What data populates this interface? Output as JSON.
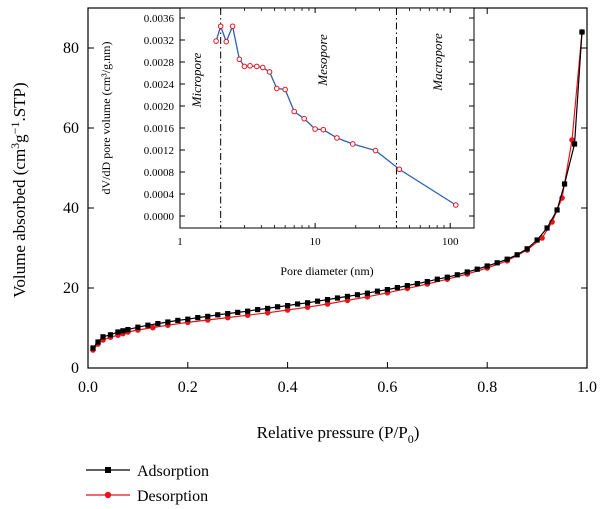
{
  "chart_data": [
    {
      "type": "line",
      "id": "isotherm",
      "xlabel": "Relative pressure (P/P",
      "xlabel_sub": "0",
      "xlabel_tail": ")",
      "ylabel": "Volume absorbed (cm",
      "ylabel_sup1": "3",
      "ylabel_mid": "g",
      "ylabel_sup2": "−1",
      "ylabel_tail": ".STP)",
      "xlim": [
        0,
        1.0
      ],
      "ylim": [
        0,
        90
      ],
      "xticks": [
        0.0,
        0.2,
        0.4,
        0.6,
        0.8,
        1.0
      ],
      "xtick_labels": [
        "0.0",
        "0.2",
        "0.4",
        "0.6",
        "0.8",
        "1.0"
      ],
      "yticks": [
        0,
        20,
        40,
        60,
        80
      ],
      "ytick_labels": [
        "0",
        "20",
        "40",
        "60",
        "80"
      ],
      "legend_position": "below-left",
      "series": [
        {
          "name": "Adsorption",
          "color": "#000000",
          "marker": "square",
          "x": [
            0.01,
            0.02,
            0.03,
            0.045,
            0.06,
            0.07,
            0.08,
            0.1,
            0.12,
            0.14,
            0.16,
            0.18,
            0.2,
            0.22,
            0.24,
            0.26,
            0.28,
            0.3,
            0.32,
            0.34,
            0.36,
            0.38,
            0.4,
            0.42,
            0.44,
            0.46,
            0.48,
            0.5,
            0.52,
            0.54,
            0.56,
            0.58,
            0.6,
            0.62,
            0.64,
            0.66,
            0.68,
            0.7,
            0.72,
            0.74,
            0.76,
            0.78,
            0.8,
            0.82,
            0.84,
            0.86,
            0.88,
            0.9,
            0.92,
            0.94,
            0.955,
            0.975,
            0.99
          ],
          "y": [
            5.0,
            6.5,
            7.8,
            8.3,
            9.0,
            9.3,
            9.6,
            10.2,
            10.7,
            11.1,
            11.5,
            11.9,
            12.2,
            12.6,
            12.9,
            13.3,
            13.6,
            13.9,
            14.2,
            14.6,
            14.9,
            15.3,
            15.6,
            16.0,
            16.3,
            16.7,
            17.1,
            17.5,
            17.9,
            18.3,
            18.7,
            19.2,
            19.6,
            20.1,
            20.6,
            21.1,
            21.6,
            22.2,
            22.7,
            23.3,
            24.0,
            24.7,
            25.5,
            26.3,
            27.2,
            28.3,
            29.8,
            32.0,
            35.0,
            39.5,
            46.0,
            56.0,
            84.0
          ]
        },
        {
          "name": "Desorption",
          "color": "#e8141b",
          "marker": "circle",
          "x": [
            0.01,
            0.02,
            0.03,
            0.045,
            0.06,
            0.07,
            0.08,
            0.1,
            0.13,
            0.16,
            0.2,
            0.24,
            0.28,
            0.32,
            0.36,
            0.4,
            0.44,
            0.48,
            0.52,
            0.56,
            0.6,
            0.64,
            0.68,
            0.72,
            0.76,
            0.8,
            0.84,
            0.88,
            0.91,
            0.93,
            0.95,
            0.97,
            0.99
          ],
          "y": [
            4.5,
            6.0,
            7.0,
            7.7,
            8.2,
            8.6,
            9.0,
            9.5,
            10.1,
            10.7,
            11.4,
            12.0,
            12.6,
            13.2,
            13.8,
            14.5,
            15.2,
            16.0,
            16.9,
            17.8,
            18.8,
            19.9,
            21.0,
            22.2,
            23.5,
            25.0,
            26.8,
            29.5,
            32.5,
            36.5,
            42.5,
            57.0,
            84.0
          ]
        }
      ]
    },
    {
      "type": "line",
      "id": "pore-distribution-inset",
      "xlabel": "Pore diameter (nm)",
      "ylabel": "dV/dD pore volume (cm³/g.nm)",
      "xscale": "log",
      "xlim": [
        1,
        150
      ],
      "ylim": [
        -0.0001,
        0.0037
      ],
      "xticks": [
        1,
        10,
        100
      ],
      "xtick_labels": [
        "1",
        "10",
        "100"
      ],
      "yticks": [
        0.0,
        0.0004,
        0.0008,
        0.0012,
        0.0016,
        0.002,
        0.0024,
        0.0028,
        0.0032,
        0.0036
      ],
      "ytick_labels": [
        "0.0000",
        "0.0004",
        "0.0008",
        "0.0012",
        "0.0016",
        "0.0020",
        "0.0024",
        "0.0028",
        "0.0032",
        "0.0036"
      ],
      "boundaries": [
        2,
        40
      ],
      "regions": [
        "Micropore",
        "Mesopore",
        "Macropore"
      ],
      "series": [
        {
          "color": "#2e5fb3",
          "marker_color": "#e8141b",
          "x": [
            1.85,
            2.0,
            2.2,
            2.45,
            2.75,
            3.0,
            3.3,
            3.7,
            4.1,
            4.6,
            5.2,
            6.0,
            7.0,
            8.3,
            10.0,
            11.5,
            14.5,
            19.0,
            28.0,
            42.0,
            110.0
          ],
          "y": [
            0.00318,
            0.00345,
            0.00317,
            0.00345,
            0.00285,
            0.00272,
            0.00273,
            0.00272,
            0.0027,
            0.00262,
            0.00232,
            0.0023,
            0.0019,
            0.00177,
            0.00158,
            0.00157,
            0.00142,
            0.00131,
            0.00119,
            0.00085,
            0.0002
          ]
        }
      ]
    },
    {
      "type": "legend",
      "entries": [
        "Adsorption",
        "Desorption"
      ]
    }
  ]
}
